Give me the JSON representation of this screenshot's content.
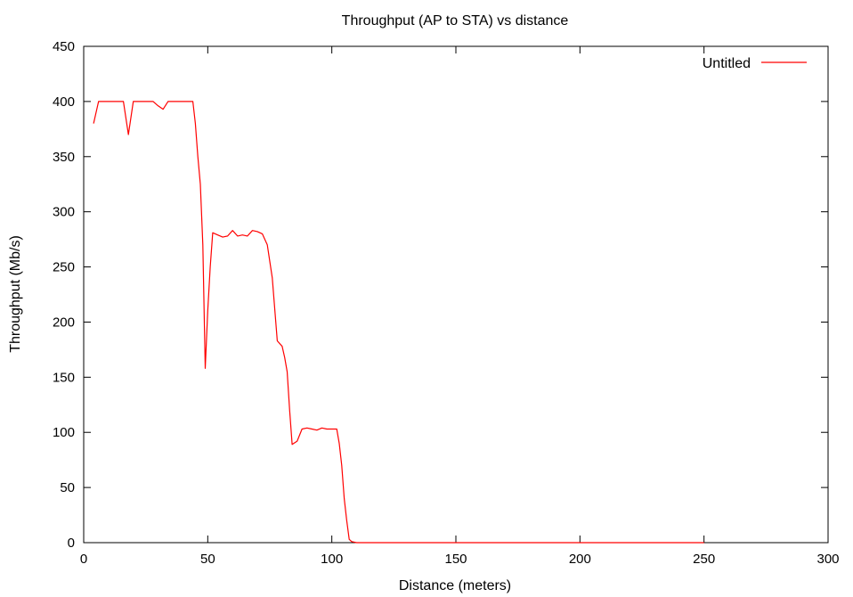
{
  "chart_data": {
    "type": "line",
    "title": "Throughput (AP to STA) vs distance",
    "xlabel": "Distance (meters)",
    "ylabel": "Throughput (Mb/s)",
    "xlim": [
      0,
      300
    ],
    "ylim": [
      0,
      450
    ],
    "xticks": [
      0,
      50,
      100,
      150,
      200,
      250,
      300
    ],
    "yticks": [
      0,
      50,
      100,
      150,
      200,
      250,
      300,
      350,
      400,
      450
    ],
    "grid": false,
    "legend": "top-right",
    "series": [
      {
        "name": "Untitled",
        "color": "#ff0000",
        "x": [
          4,
          6,
          8,
          10,
          12,
          14,
          16,
          18,
          20,
          22,
          24,
          26,
          28,
          30,
          32,
          34,
          36,
          38,
          40,
          42,
          44,
          45,
          46,
          47,
          48,
          49,
          50,
          51,
          52,
          54,
          56,
          58,
          60,
          62,
          64,
          66,
          68,
          70,
          72,
          74,
          76,
          78,
          80,
          81,
          82,
          83,
          84,
          86,
          88,
          90,
          92,
          94,
          96,
          98,
          100,
          102,
          103,
          104,
          105,
          106,
          107,
          108,
          110,
          120,
          150,
          200,
          250
        ],
        "y": [
          380,
          400,
          400,
          400,
          400,
          400,
          400,
          370,
          400,
          400,
          400,
          400,
          400,
          396,
          393,
          400,
          400,
          400,
          400,
          400,
          400,
          380,
          350,
          325,
          270,
          158,
          210,
          250,
          281,
          279,
          277,
          278,
          283,
          278,
          279,
          278,
          283,
          282,
          280,
          270,
          240,
          183,
          178,
          168,
          155,
          120,
          89,
          92,
          103,
          104,
          103,
          102,
          104,
          103,
          103,
          103,
          90,
          70,
          40,
          20,
          3,
          1,
          0,
          0,
          0,
          0,
          0
        ]
      }
    ]
  }
}
